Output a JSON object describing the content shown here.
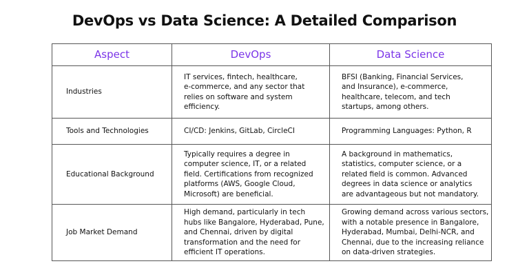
{
  "title": "DevOps vs Data Science: A Detailed Comparison",
  "table": {
    "header": [
      "Aspect",
      "DevOps",
      "Data Science"
    ],
    "rows": [
      [
        "Industries",
        [
          "IT services, fintech, healthcare,",
          "e-commerce, and any sector that",
          "relies on software and system",
          "efficiency."
        ],
        [
          "BFSI (Banking, Financial Services,",
          "and Insurance), e-commerce,",
          "healthcare, telecom, and tech",
          "startups, among others."
        ]
      ],
      [
        "Tools and Technologies",
        [
          "CI/CD: Jenkins, GitLab, CircleCI"
        ],
        [
          "Programming Languages: Python, R"
        ]
      ],
      [
        "Educational Background",
        [
          "Typically requires a degree in",
          "computer science, IT, or a related",
          "field. Certifications from recognized",
          "platforms (AWS, Google Cloud,",
          "Microsoft) are beneficial."
        ],
        [
          "A background in mathematics,",
          "statistics, computer science, or a",
          "related field is common. Advanced",
          "degrees in data science or analytics",
          "are advantageous but not mandatory."
        ]
      ],
      [
        "Job Market Demand",
        [
          "High demand, particularly in tech",
          "hubs like Bangalore, Hyderabad, Pune,",
          "and Chennai, driven by digital",
          "transformation and the need for",
          "efficient IT operations."
        ],
        [
          "Growing demand across various sectors,",
          "with a notable presence in Bangalore,",
          "Hyderabad, Mumbai, Delhi-NCR, and",
          "Chennai, due to the increasing reliance",
          "on data-driven strategies."
        ]
      ]
    ]
  }
}
